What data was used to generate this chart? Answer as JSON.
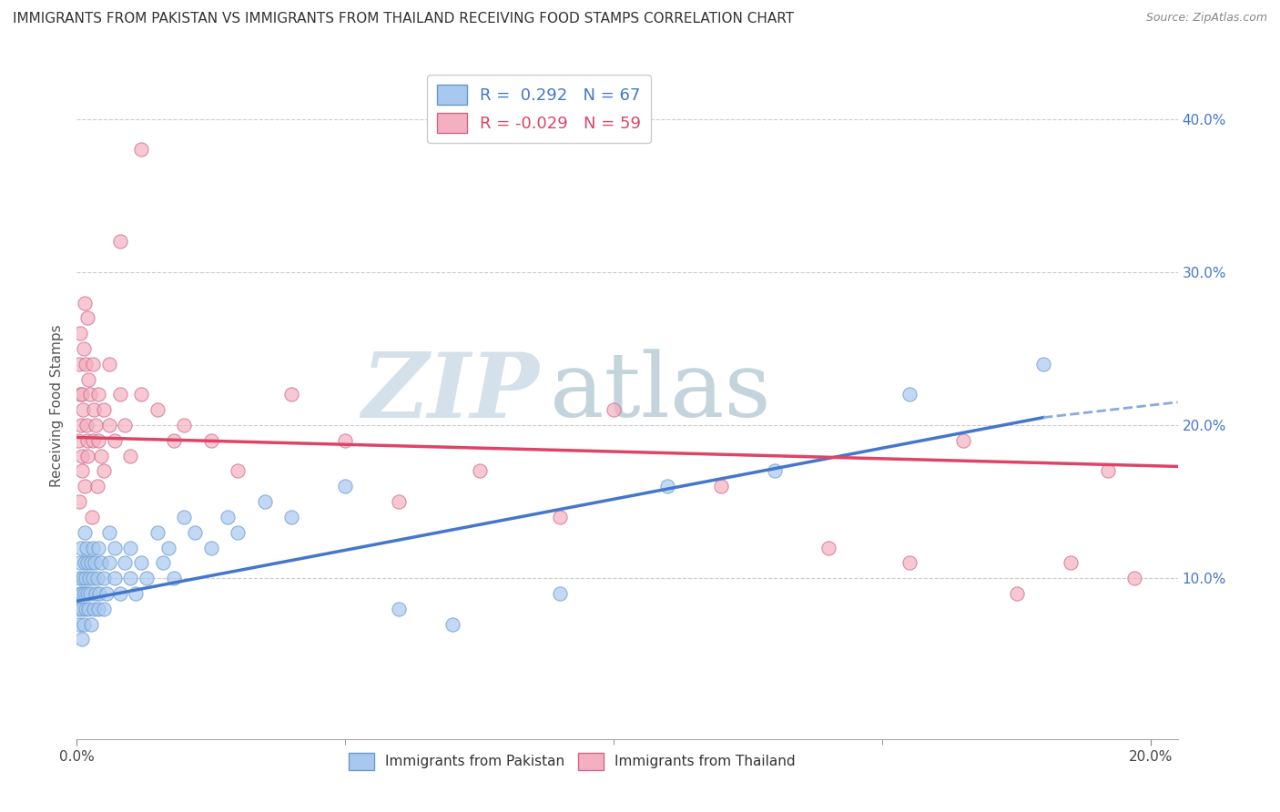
{
  "title": "IMMIGRANTS FROM PAKISTAN VS IMMIGRANTS FROM THAILAND RECEIVING FOOD STAMPS CORRELATION CHART",
  "source": "Source: ZipAtlas.com",
  "ylabel": "Receiving Food Stamps",
  "xlim": [
    0.0,
    0.205
  ],
  "ylim": [
    -0.005,
    0.43
  ],
  "xticks": [
    0.0,
    0.2
  ],
  "xtick_labels": [
    "0.0%",
    "20.0%"
  ],
  "xtick_minor": [
    0.05,
    0.1,
    0.15
  ],
  "yticks_right": [
    0.1,
    0.2,
    0.3,
    0.4
  ],
  "ytick_labels_right": [
    "10.0%",
    "20.0%",
    "30.0%",
    "40.0%"
  ],
  "R_pakistan": 0.292,
  "N_pakistan": 67,
  "R_thailand": -0.029,
  "N_thailand": 59,
  "color_pakistan": "#a8c8f0",
  "color_pakistan_edge": "#6699cc",
  "color_thailand": "#f4b0c0",
  "color_thailand_edge": "#cc6688",
  "trend_color_pakistan": "#4477cc",
  "trend_color_pakistan_dashed": "#88aadd",
  "trend_color_thailand": "#dd4466",
  "background_color": "#ffffff",
  "grid_color": "#cccccc",
  "title_fontsize": 11,
  "watermark_zip": "ZIP",
  "watermark_atlas": "atlas",
  "watermark_color_zip": "#b8ccdd",
  "watermark_color_atlas": "#88aabb",
  "legend_labels": [
    "Immigrants from Pakistan",
    "Immigrants from Thailand"
  ],
  "pakistan_scatter_x": [
    0.0002,
    0.0004,
    0.0005,
    0.0006,
    0.0007,
    0.0008,
    0.0009,
    0.001,
    0.001,
    0.0012,
    0.0013,
    0.0014,
    0.0015,
    0.0015,
    0.0016,
    0.0017,
    0.0018,
    0.002,
    0.002,
    0.0022,
    0.0023,
    0.0025,
    0.0026,
    0.0027,
    0.003,
    0.003,
    0.0032,
    0.0033,
    0.0035,
    0.0038,
    0.004,
    0.004,
    0.0042,
    0.0045,
    0.005,
    0.005,
    0.0055,
    0.006,
    0.006,
    0.007,
    0.007,
    0.008,
    0.009,
    0.01,
    0.01,
    0.011,
    0.012,
    0.013,
    0.015,
    0.016,
    0.017,
    0.018,
    0.02,
    0.022,
    0.025,
    0.028,
    0.03,
    0.035,
    0.04,
    0.05,
    0.06,
    0.07,
    0.09,
    0.11,
    0.13,
    0.155,
    0.18
  ],
  "pakistan_scatter_y": [
    0.08,
    0.1,
    0.07,
    0.09,
    0.11,
    0.12,
    0.06,
    0.09,
    0.08,
    0.1,
    0.07,
    0.11,
    0.09,
    0.13,
    0.08,
    0.1,
    0.12,
    0.09,
    0.11,
    0.08,
    0.1,
    0.09,
    0.11,
    0.07,
    0.1,
    0.12,
    0.08,
    0.11,
    0.09,
    0.1,
    0.08,
    0.12,
    0.09,
    0.11,
    0.08,
    0.1,
    0.09,
    0.11,
    0.13,
    0.1,
    0.12,
    0.09,
    0.11,
    0.1,
    0.12,
    0.09,
    0.11,
    0.1,
    0.13,
    0.11,
    0.12,
    0.1,
    0.14,
    0.13,
    0.12,
    0.14,
    0.13,
    0.15,
    0.14,
    0.16,
    0.08,
    0.07,
    0.09,
    0.16,
    0.17,
    0.22,
    0.24
  ],
  "thailand_scatter_x": [
    0.0003,
    0.0005,
    0.0006,
    0.0007,
    0.0008,
    0.001,
    0.001,
    0.0012,
    0.0013,
    0.0015,
    0.0016,
    0.0018,
    0.002,
    0.002,
    0.0022,
    0.0025,
    0.003,
    0.003,
    0.0032,
    0.0035,
    0.004,
    0.004,
    0.0045,
    0.005,
    0.005,
    0.006,
    0.007,
    0.008,
    0.009,
    0.01,
    0.012,
    0.015,
    0.018,
    0.02,
    0.025,
    0.03,
    0.04,
    0.05,
    0.06,
    0.075,
    0.09,
    0.1,
    0.12,
    0.14,
    0.155,
    0.165,
    0.175,
    0.185,
    0.192,
    0.197,
    0.0004,
    0.0009,
    0.0014,
    0.0019,
    0.0028,
    0.0038,
    0.006,
    0.008,
    0.012
  ],
  "thailand_scatter_y": [
    0.19,
    0.24,
    0.22,
    0.26,
    0.2,
    0.18,
    0.22,
    0.21,
    0.25,
    0.28,
    0.24,
    0.2,
    0.19,
    0.27,
    0.23,
    0.22,
    0.24,
    0.19,
    0.21,
    0.2,
    0.22,
    0.19,
    0.18,
    0.21,
    0.17,
    0.2,
    0.19,
    0.22,
    0.2,
    0.18,
    0.22,
    0.21,
    0.19,
    0.2,
    0.19,
    0.17,
    0.22,
    0.19,
    0.15,
    0.17,
    0.14,
    0.21,
    0.16,
    0.12,
    0.11,
    0.19,
    0.09,
    0.11,
    0.17,
    0.1,
    0.15,
    0.17,
    0.16,
    0.18,
    0.14,
    0.16,
    0.24,
    0.32,
    0.38
  ],
  "trend_pakistan_x0": 0.0,
  "trend_pakistan_y0": 0.085,
  "trend_pakistan_x1": 0.18,
  "trend_pakistan_y1": 0.205,
  "trend_pakistan_dashed_x0": 0.18,
  "trend_pakistan_dashed_y0": 0.205,
  "trend_pakistan_dashed_x1": 0.205,
  "trend_pakistan_dashed_y1": 0.215,
  "trend_thailand_x0": 0.0,
  "trend_thailand_y0": 0.192,
  "trend_thailand_x1": 0.205,
  "trend_thailand_y1": 0.173
}
